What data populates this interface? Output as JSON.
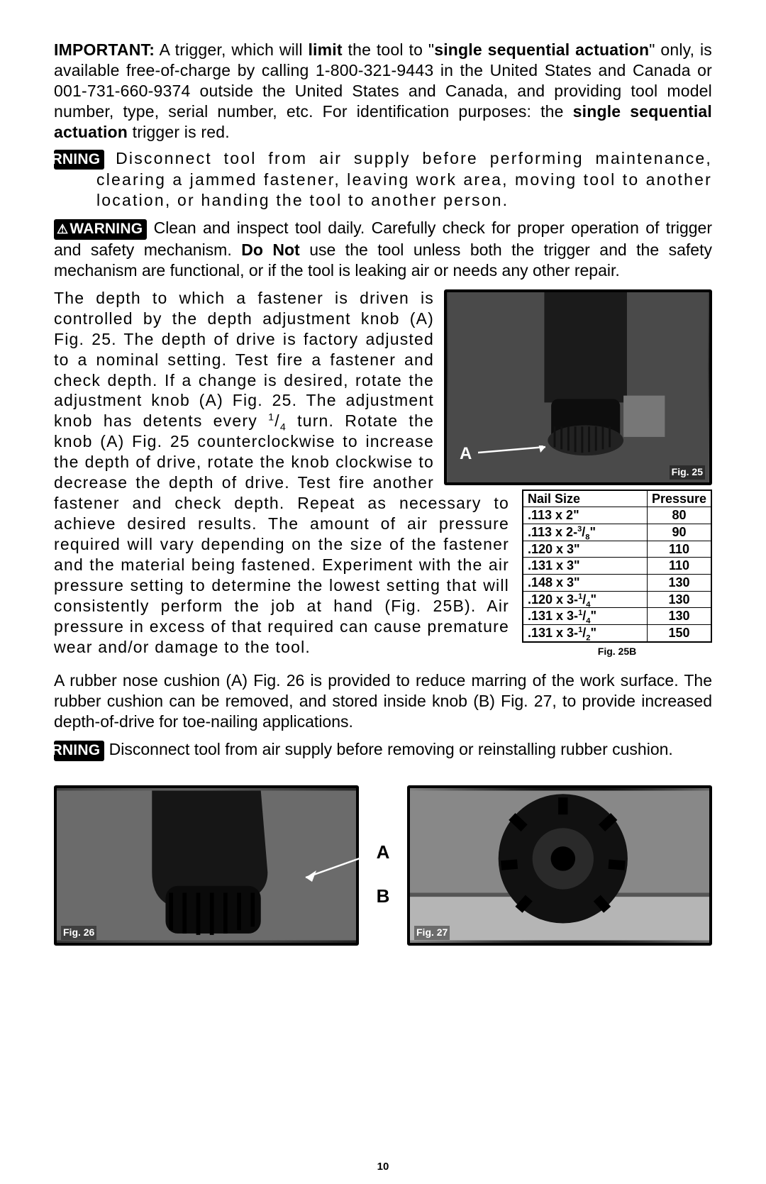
{
  "page_number": "10",
  "important": {
    "label": "IMPORTANT:",
    "lead": " A trigger, which will ",
    "bold1": "limit",
    "mid": " the tool to \"",
    "bold2": "single sequential actuation",
    "tail": "\" only, is available free-of-charge by calling 1-800-321-9443 in the United States and Canada or 001-731-660-9374 outside the United States and Canada, and providing tool model number, type, serial number, etc. For identification purposes: the ",
    "bold3": "single sequential actuation",
    "tail2": " trigger is red."
  },
  "warning_label": "WARNING",
  "warn1": "Disconnect tool from air supply before performing maintenance, clearing a jammed fastener, leaving work area, moving tool to another location, or handing the tool to another person.",
  "warn2_pre": "Clean and inspect tool daily. Carefully check for proper operation of trigger and safety mechanism. ",
  "warn2_bold": "Do Not",
  "warn2_post": " use the tool unless both the trigger and the safety mechanism are functional, or if the tool is leaking air or needs any other repair.",
  "depth_para": "The depth to which a fastener is driven is controlled by the depth adjustment knob (A) Fig. 25. The depth of drive is factory adjusted to a nominal setting. Test fire a fastener and check depth. If a change is desired, rotate the adjustment knob (A) Fig. 25. The adjustment knob has detents every ",
  "depth_frac": "1/4",
  "depth_para2": " turn. Rotate the knob (A) Fig. 25 counterclockwise  to increase the depth of drive, rotate the knob clockwise to decrease the depth of drive. Test fire another fastener and check depth. Repeat as necessary to achieve desired results. The amount of air pressure required will vary depending on the size of the fastener and the material being fastened. Experiment with the air pressure setting to determine the lowest setting that will consistently perform the job at hand (Fig. 25B). Air pressure in excess of that required can cause premature wear and/or damage to the tool.",
  "fig25_letter": "A",
  "fig25_caption": "Fig. 25",
  "table": {
    "caption": "Fig. 25B",
    "headers": [
      "Nail Size",
      "Pressure"
    ],
    "rows": [
      {
        "size_pre": ".113 x 2",
        "size_frac": "",
        "size_suf": "\"",
        "pressure": "80"
      },
      {
        "size_pre": ".113 x 2-",
        "size_frac": "3/8",
        "size_suf": "\"",
        "pressure": "90"
      },
      {
        "size_pre": ".120 x 3",
        "size_frac": "",
        "size_suf": "\"",
        "pressure": "110"
      },
      {
        "size_pre": ".131 x 3",
        "size_frac": "",
        "size_suf": "\"",
        "pressure": "110"
      },
      {
        "size_pre": ".148 x 3",
        "size_frac": "",
        "size_suf": "\"",
        "pressure": "130"
      },
      {
        "size_pre": ".120 x 3-",
        "size_frac": "1/4",
        "size_suf": "\"",
        "pressure": "130"
      },
      {
        "size_pre": ".131 x 3-",
        "size_frac": "1/4",
        "size_suf": "\"",
        "pressure": "130"
      },
      {
        "size_pre": ".131 x 3-",
        "size_frac": "1/2",
        "size_suf": "\"",
        "pressure": "150"
      }
    ]
  },
  "cushion_para": "A rubber nose cushion (A) Fig. 26 is provided to reduce marring of the work surface. The rubber cushion can be removed, and stored inside knob (B) Fig. 27, to provide increased depth-of-drive for toe-nailing applications.",
  "warn3": "Disconnect tool from air supply before removing or reinstalling rubber cushion.",
  "fig26": {
    "letter": "A",
    "caption": "Fig. 26"
  },
  "fig27": {
    "letter": "B",
    "caption": "Fig. 27"
  }
}
